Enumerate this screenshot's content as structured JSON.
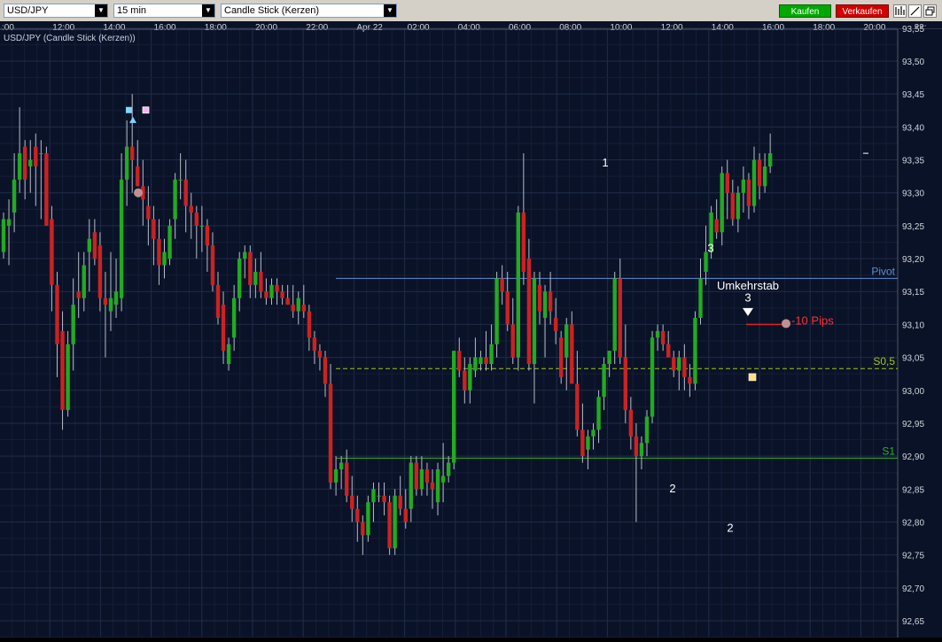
{
  "toolbar": {
    "symbol": "USD/JPY",
    "timeframe": "15 min",
    "chart_type": "Candle Stick (Kerzen)",
    "buy_label": "Kaufen",
    "sell_label": "Verkaufen",
    "buy_color": "#00a800",
    "sell_color": "#d00000",
    "tool_icons": [
      "bar-chart-icon",
      "draw-line-icon",
      "detach-window-icon"
    ]
  },
  "chart_data": {
    "type": "candlestick",
    "title": "USD/JPY (Candle Stick (Kerzen))",
    "x_ticks": [
      ":00",
      "12:00",
      "14:00",
      "16:00",
      "18:00",
      "20:00",
      "22:00",
      "Apr 22",
      "02:00",
      "04:00",
      "06:00",
      "08:00",
      "10:00",
      "12:00",
      "14:00",
      "16:00",
      "18:00",
      "20:00",
      "22:"
    ],
    "y_ticks": [
      "93,55",
      "93,50",
      "93,45",
      "93,40",
      "93,35",
      "93,30",
      "93,25",
      "93,20",
      "93,15",
      "93,10",
      "93,05",
      "93,00",
      "92,95",
      "92,90",
      "92,85",
      "92,80",
      "92,75",
      "92,70",
      "92,65"
    ],
    "ylim": [
      92.64,
      93.575
    ],
    "grid": true,
    "up_color": "#22aa22",
    "down_color": "#cc2222",
    "levels": [
      {
        "label": "Pivot",
        "value": 93.17,
        "color": "#5b8fd0",
        "style": "solid"
      },
      {
        "label": "S0,5",
        "value": 93.033,
        "color": "#a4c41a",
        "style": "dashed"
      },
      {
        "label": "S1",
        "value": 92.897,
        "color": "#2cb02c",
        "style": "solid"
      }
    ],
    "annotations": {
      "wave_numbers": [
        "1",
        "2",
        "3",
        "2",
        "3"
      ],
      "umkehrstab": "Umkehrstab",
      "stop_label": "-10 Pips"
    },
    "candles": [
      [
        93.21,
        93.27,
        93.2,
        93.26
      ],
      [
        93.25,
        93.29,
        93.19,
        93.26
      ],
      [
        93.27,
        93.36,
        93.24,
        93.32
      ],
      [
        93.32,
        93.43,
        93.3,
        93.36
      ],
      [
        93.37,
        93.38,
        93.29,
        93.32
      ],
      [
        93.34,
        93.38,
        93.3,
        93.35
      ],
      [
        93.37,
        93.39,
        93.28,
        93.34
      ],
      [
        93.36,
        93.38,
        93.26,
        93.36
      ],
      [
        93.36,
        93.37,
        93.25,
        93.25
      ],
      [
        93.26,
        93.28,
        93.12,
        93.16
      ],
      [
        93.16,
        93.18,
        93.02,
        93.07
      ],
      [
        93.09,
        93.12,
        92.94,
        92.97
      ],
      [
        92.97,
        93.09,
        92.96,
        93.07
      ],
      [
        93.07,
        93.17,
        93.03,
        93.13
      ],
      [
        93.15,
        93.21,
        93.11,
        93.14
      ],
      [
        93.14,
        93.21,
        93.12,
        93.19
      ],
      [
        93.21,
        93.26,
        93.15,
        93.23
      ],
      [
        93.24,
        93.26,
        93.19,
        93.2
      ],
      [
        93.22,
        93.24,
        93.12,
        93.14
      ],
      [
        93.14,
        93.18,
        93.05,
        93.13
      ],
      [
        93.12,
        93.21,
        93.09,
        93.14
      ],
      [
        93.13,
        93.2,
        93.11,
        93.15
      ],
      [
        93.14,
        93.36,
        93.12,
        93.32
      ],
      [
        93.32,
        93.41,
        93.28,
        93.37
      ],
      [
        93.37,
        93.45,
        93.3,
        93.35
      ],
      [
        93.34,
        93.38,
        93.31,
        93.31
      ],
      [
        93.31,
        93.35,
        93.25,
        93.29
      ],
      [
        93.28,
        93.31,
        93.22,
        93.26
      ],
      [
        93.26,
        93.28,
        93.19,
        93.23
      ],
      [
        93.23,
        93.26,
        93.16,
        93.19
      ],
      [
        93.19,
        93.23,
        93.17,
        93.21
      ],
      [
        93.2,
        93.26,
        93.19,
        93.25
      ],
      [
        93.26,
        93.33,
        93.23,
        93.32
      ],
      [
        93.32,
        93.36,
        93.29,
        93.32
      ],
      [
        93.32,
        93.35,
        93.24,
        93.28
      ],
      [
        93.28,
        93.3,
        93.23,
        93.27
      ],
      [
        93.27,
        93.28,
        93.2,
        93.25
      ],
      [
        93.25,
        93.28,
        93.21,
        93.25
      ],
      [
        93.25,
        93.26,
        93.18,
        93.22
      ],
      [
        93.22,
        93.24,
        93.15,
        93.16
      ],
      [
        93.16,
        93.18,
        93.1,
        93.11
      ],
      [
        93.13,
        93.15,
        93.04,
        93.06
      ],
      [
        93.04,
        93.08,
        93.03,
        93.07
      ],
      [
        93.08,
        93.16,
        93.06,
        93.14
      ],
      [
        93.14,
        93.21,
        93.12,
        93.2
      ],
      [
        93.2,
        93.22,
        93.17,
        93.21
      ],
      [
        93.21,
        93.22,
        93.14,
        93.16
      ],
      [
        93.16,
        93.2,
        93.14,
        93.18
      ],
      [
        93.18,
        93.21,
        93.14,
        93.15
      ],
      [
        93.15,
        93.17,
        93.13,
        93.14
      ],
      [
        93.14,
        93.17,
        93.13,
        93.16
      ],
      [
        93.16,
        93.17,
        93.13,
        93.15
      ],
      [
        93.15,
        93.16,
        93.13,
        93.14
      ],
      [
        93.14,
        93.16,
        93.13,
        93.13
      ],
      [
        93.13,
        93.16,
        93.11,
        93.12
      ],
      [
        93.12,
        93.15,
        93.1,
        93.14
      ],
      [
        93.13,
        93.16,
        93.11,
        93.12
      ],
      [
        93.12,
        93.13,
        93.06,
        93.08
      ],
      [
        93.08,
        93.09,
        93.04,
        93.06
      ],
      [
        93.06,
        93.07,
        93.03,
        93.05
      ],
      [
        93.05,
        93.06,
        92.99,
        93.01
      ],
      [
        93.01,
        93.04,
        92.85,
        92.86
      ],
      [
        92.86,
        92.9,
        92.84,
        92.88
      ],
      [
        92.88,
        92.9,
        92.85,
        92.89
      ],
      [
        92.89,
        92.91,
        92.83,
        92.84
      ],
      [
        92.84,
        92.87,
        92.8,
        92.82
      ],
      [
        92.82,
        92.84,
        92.77,
        92.8
      ],
      [
        92.8,
        92.81,
        92.75,
        92.78
      ],
      [
        92.78,
        92.84,
        92.77,
        92.83
      ],
      [
        92.83,
        92.86,
        92.8,
        92.85
      ],
      [
        92.84,
        92.86,
        92.83,
        92.84
      ],
      [
        92.84,
        92.86,
        92.81,
        92.83
      ],
      [
        92.83,
        92.84,
        92.75,
        92.76
      ],
      [
        92.76,
        92.85,
        92.75,
        92.84
      ],
      [
        92.84,
        92.87,
        92.81,
        92.82
      ],
      [
        92.82,
        92.85,
        92.79,
        92.8
      ],
      [
        92.82,
        92.9,
        92.8,
        92.89
      ],
      [
        92.89,
        92.9,
        92.84,
        92.85
      ],
      [
        92.85,
        92.9,
        92.84,
        92.88
      ],
      [
        92.88,
        92.89,
        92.84,
        92.86
      ],
      [
        92.86,
        92.88,
        92.82,
        92.85
      ],
      [
        92.83,
        92.89,
        92.81,
        92.88
      ],
      [
        92.86,
        92.92,
        92.83,
        92.87
      ],
      [
        92.87,
        92.9,
        92.86,
        92.89
      ],
      [
        92.89,
        93.06,
        92.88,
        93.06
      ],
      [
        93.06,
        93.08,
        93.02,
        93.03
      ],
      [
        93.03,
        93.05,
        92.98,
        93.0
      ],
      [
        93.0,
        93.05,
        92.98,
        93.04
      ],
      [
        93.03,
        93.08,
        93.02,
        93.05
      ],
      [
        93.04,
        93.06,
        93.03,
        93.05
      ],
      [
        93.05,
        93.09,
        93.03,
        93.04
      ],
      [
        93.04,
        93.1,
        93.03,
        93.07
      ],
      [
        93.07,
        93.18,
        93.05,
        93.17
      ],
      [
        93.17,
        93.19,
        93.13,
        93.15
      ],
      [
        93.15,
        93.18,
        93.09,
        93.1
      ],
      [
        93.1,
        93.14,
        93.04,
        93.05
      ],
      [
        93.05,
        93.28,
        93.03,
        93.27
      ],
      [
        93.27,
        93.36,
        93.16,
        93.18
      ],
      [
        93.2,
        93.23,
        93.03,
        93.04
      ],
      [
        93.04,
        93.18,
        92.98,
        93.17
      ],
      [
        93.16,
        93.18,
        93.1,
        93.12
      ],
      [
        93.11,
        93.16,
        93.05,
        93.15
      ],
      [
        93.15,
        93.18,
        93.1,
        93.12
      ],
      [
        93.11,
        93.14,
        93.07,
        93.09
      ],
      [
        93.08,
        93.09,
        93.01,
        93.02
      ],
      [
        93.05,
        93.11,
        93.0,
        93.1
      ],
      [
        93.1,
        93.12,
        93.01,
        93.01
      ],
      [
        93.01,
        93.06,
        92.93,
        92.94
      ],
      [
        92.94,
        92.98,
        92.89,
        92.9
      ],
      [
        92.91,
        92.94,
        92.88,
        92.93
      ],
      [
        92.93,
        92.95,
        92.91,
        92.94
      ],
      [
        92.94,
        93.0,
        92.92,
        92.99
      ],
      [
        92.99,
        93.05,
        92.97,
        93.04
      ],
      [
        93.04,
        93.06,
        93.02,
        93.06
      ],
      [
        93.06,
        93.18,
        93.04,
        93.17
      ],
      [
        93.17,
        93.2,
        93.04,
        93.05
      ],
      [
        93.05,
        93.1,
        92.95,
        92.97
      ],
      [
        92.97,
        92.99,
        92.91,
        92.93
      ],
      [
        92.93,
        92.95,
        92.8,
        92.9
      ],
      [
        92.9,
        92.93,
        92.88,
        92.92
      ],
      [
        92.92,
        92.97,
        92.9,
        92.96
      ],
      [
        92.96,
        93.09,
        92.95,
        93.08
      ],
      [
        93.08,
        93.1,
        93.06,
        93.09
      ],
      [
        93.09,
        93.1,
        93.06,
        93.07
      ],
      [
        93.07,
        93.09,
        93.05,
        93.05
      ],
      [
        93.05,
        93.06,
        93.02,
        93.03
      ],
      [
        93.03,
        93.06,
        93.0,
        93.05
      ],
      [
        93.05,
        93.07,
        93.0,
        93.02
      ],
      [
        93.02,
        93.04,
        92.99,
        93.01
      ],
      [
        93.01,
        93.12,
        93.0,
        93.11
      ],
      [
        93.11,
        93.2,
        93.1,
        93.17
      ],
      [
        93.18,
        93.25,
        93.16,
        93.21
      ],
      [
        93.21,
        93.28,
        93.2,
        93.27
      ],
      [
        93.26,
        93.29,
        93.23,
        93.24
      ],
      [
        93.24,
        93.34,
        93.22,
        93.33
      ],
      [
        93.33,
        93.35,
        93.26,
        93.3
      ],
      [
        93.3,
        93.32,
        93.25,
        93.26
      ],
      [
        93.26,
        93.31,
        93.24,
        93.3
      ],
      [
        93.3,
        93.34,
        93.27,
        93.32
      ],
      [
        93.32,
        93.33,
        93.26,
        93.28
      ],
      [
        93.28,
        93.37,
        93.27,
        93.35
      ],
      [
        93.35,
        93.36,
        93.29,
        93.31
      ],
      [
        93.31,
        93.36,
        93.3,
        93.34
      ],
      [
        93.34,
        93.39,
        93.33,
        93.36
      ]
    ]
  }
}
